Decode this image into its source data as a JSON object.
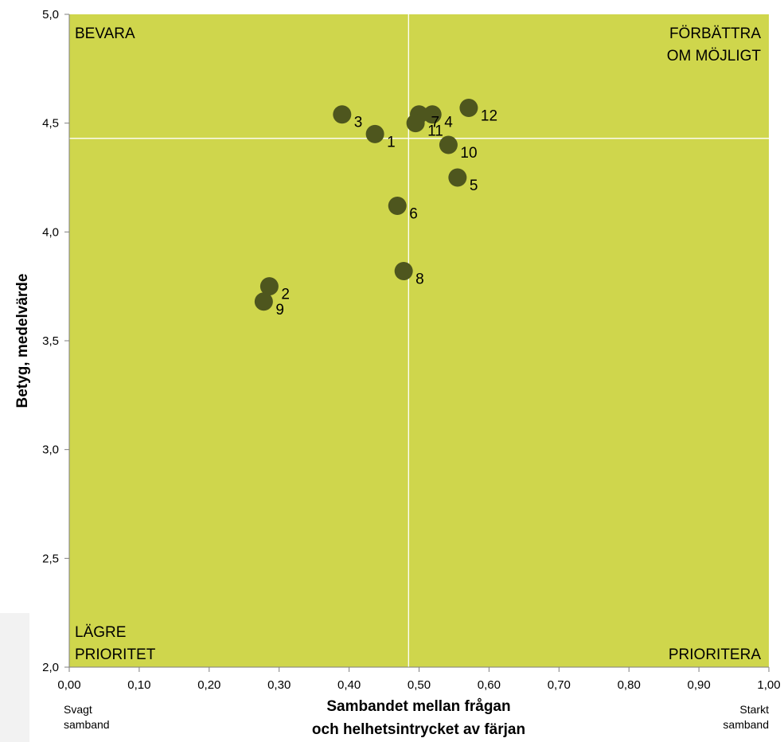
{
  "chart_data": {
    "type": "scatter",
    "xlabel_lines": [
      "Sambandet mellan frågan",
      "och helhetsintrycket av färjan"
    ],
    "ylabel": "Betyg, medelvärde",
    "xlim": [
      0,
      1
    ],
    "ylim": [
      2,
      5
    ],
    "x_ticks": [
      "0,00",
      "0,10",
      "0,20",
      "0,30",
      "0,40",
      "0,50",
      "0,60",
      "0,70",
      "0,80",
      "0,90",
      "1,00"
    ],
    "y_ticks": [
      "2,0",
      "2,5",
      "3,0",
      "3,5",
      "4,0",
      "4,5",
      "5,0"
    ],
    "x_tick_values": [
      0,
      0.1,
      0.2,
      0.3,
      0.4,
      0.5,
      0.6,
      0.7,
      0.8,
      0.9,
      1.0
    ],
    "y_tick_values": [
      2.0,
      2.5,
      3.0,
      3.5,
      4.0,
      4.5,
      5.0
    ],
    "reference_lines": {
      "x": 0.485,
      "y": 4.43
    },
    "background_color": "#cfd64c",
    "point_color": "#4e561e",
    "grid": false,
    "points": [
      {
        "label": "1",
        "x": 0.437,
        "y": 4.45
      },
      {
        "label": "2",
        "x": 0.286,
        "y": 3.75
      },
      {
        "label": "3",
        "x": 0.39,
        "y": 4.54
      },
      {
        "label": "4",
        "x": 0.519,
        "y": 4.54
      },
      {
        "label": "5",
        "x": 0.555,
        "y": 4.25
      },
      {
        "label": "6",
        "x": 0.469,
        "y": 4.12
      },
      {
        "label": "7",
        "x": 0.5,
        "y": 4.54
      },
      {
        "label": "8",
        "x": 0.478,
        "y": 3.82
      },
      {
        "label": "9",
        "x": 0.278,
        "y": 3.68
      },
      {
        "label": "10",
        "x": 0.542,
        "y": 4.4
      },
      {
        "label": "11",
        "x": 0.495,
        "y": 4.5
      },
      {
        "label": "12",
        "x": 0.571,
        "y": 4.57
      }
    ],
    "quadrant_labels": {
      "top_left": [
        "BEVARA"
      ],
      "top_right": [
        "FÖRBÄTTRA",
        "OM MÖJLIGT"
      ],
      "bottom_left": [
        "LÄGRE",
        "PRIORITET"
      ],
      "bottom_right": [
        "PRIORITERA"
      ]
    },
    "x_end_notes": {
      "left": [
        "Svagt",
        "samband"
      ],
      "right": [
        "Starkt",
        "samband"
      ]
    }
  }
}
